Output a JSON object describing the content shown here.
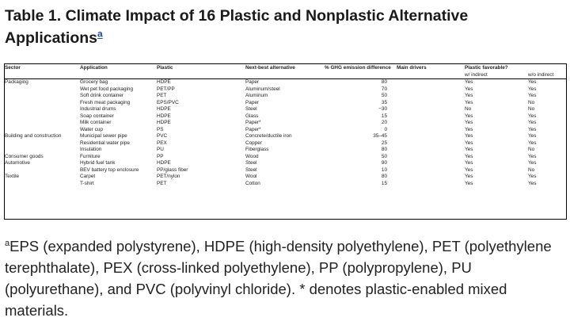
{
  "caption": {
    "text": "Table 1. Climate Impact of 16 Plastic and Nonplastic Alternative Applications",
    "footnote_mark": "a"
  },
  "table": {
    "headers": {
      "sector": "Sector",
      "application": "Application",
      "plastic": "Plastic",
      "alternative": "Next-best alternative",
      "ghg": "% GHG emission difference",
      "drivers": "Main drivers",
      "favorable": "Plastic favorable?",
      "w_indirect": "w/ indirect",
      "wo_indirect": "w/o indirect"
    },
    "rows": [
      {
        "sector": "Packaging",
        "application": "Grocery bag",
        "plastic": "HDPE",
        "alternative": "Paper",
        "ghg": "80",
        "drivers": "",
        "w": "Yes",
        "wo": "Yes"
      },
      {
        "sector": "",
        "application": "Wet pet food packaging",
        "plastic": "PET/PP",
        "alternative": "Aluminum/steel",
        "ghg": "70",
        "drivers": "",
        "w": "Yes",
        "wo": "Yes"
      },
      {
        "sector": "",
        "application": "Soft drink container",
        "plastic": "PET",
        "alternative": "Aluminum",
        "ghg": "50",
        "drivers": "",
        "w": "Yes",
        "wo": "Yes"
      },
      {
        "sector": "",
        "application": "Fresh meat packaging",
        "plastic": "EPS/PVC",
        "alternative": "Paper",
        "ghg": "35",
        "drivers": "",
        "w": "Yes",
        "wo": "No"
      },
      {
        "sector": "",
        "application": "Industrial drums",
        "plastic": "HDPE",
        "alternative": "Steel",
        "ghg": "−30",
        "drivers": "",
        "w": "No",
        "wo": "No"
      },
      {
        "sector": "",
        "application": "Soap container",
        "plastic": "HDPE",
        "alternative": "Glass",
        "ghg": "15",
        "drivers": "",
        "w": "Yes",
        "wo": "Yes"
      },
      {
        "sector": "",
        "application": "Milk container",
        "plastic": "HDPE",
        "alternative": "Paper*",
        "ghg": "20",
        "drivers": "",
        "w": "Yes",
        "wo": "Yes"
      },
      {
        "sector": "",
        "application": "Water cup",
        "plastic": "PS",
        "alternative": "Paper*",
        "ghg": "0",
        "drivers": "",
        "w": "Yes",
        "wo": "Yes"
      },
      {
        "sector": "Building and construction",
        "application": "Municipal sewer pipe",
        "plastic": "PVC",
        "alternative": "Concrete/ductile iron",
        "ghg": "35–45",
        "drivers": "",
        "w": "Yes",
        "wo": "Yes"
      },
      {
        "sector": "",
        "application": "Residential water pipe",
        "plastic": "PEX",
        "alternative": "Copper",
        "ghg": "25",
        "drivers": "",
        "w": "Yes",
        "wo": "Yes"
      },
      {
        "sector": "",
        "application": "Insulation",
        "plastic": "PU",
        "alternative": "Fiberglass",
        "ghg": "80",
        "drivers": "",
        "w": "Yes",
        "wo": "No"
      },
      {
        "sector": "Consumer goods",
        "application": "Furniture",
        "plastic": "PP",
        "alternative": "Wood",
        "ghg": "50",
        "drivers": "",
        "w": "Yes",
        "wo": "Yes"
      },
      {
        "sector": "Automotive",
        "application": "Hybrid fuel tank",
        "plastic": "HDPE",
        "alternative": "Steel",
        "ghg": "90",
        "drivers": "",
        "w": "Yes",
        "wo": "Yes"
      },
      {
        "sector": "",
        "application": "BEV battery top enclosure",
        "plastic": "PP/glass fiber",
        "alternative": "Steel",
        "ghg": "10",
        "drivers": "",
        "w": "Yes",
        "wo": "No"
      },
      {
        "sector": "Textile",
        "application": "Carpet",
        "plastic": "PET/nylon",
        "alternative": "Wool",
        "ghg": "80",
        "drivers": "",
        "w": "Yes",
        "wo": "Yes"
      },
      {
        "sector": "",
        "application": "T-shirt",
        "plastic": "PET",
        "alternative": "Cotton",
        "ghg": "15",
        "drivers": "",
        "w": "Yes",
        "wo": "Yes"
      }
    ]
  },
  "footnote": {
    "mark": "a",
    "text": "EPS (expanded polystyrene), HDPE (high-density polyethylene), PET (polyethylene terephthalate), PEX (cross-linked polyethylene), PP (polypropylene), PU (polyurethane), and PVC (polyvinyl chloride). * denotes plastic-enabled mixed materials."
  }
}
